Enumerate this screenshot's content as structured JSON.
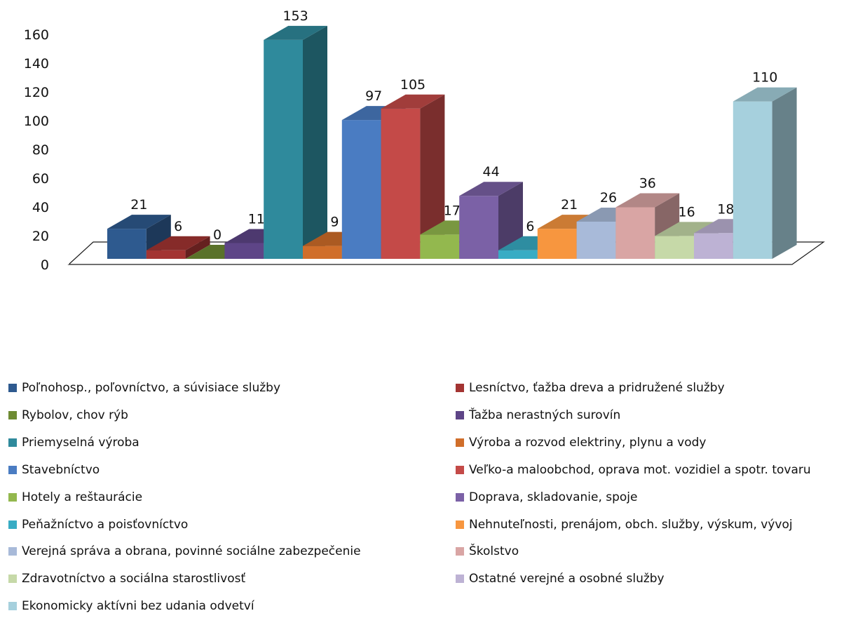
{
  "chart_data": {
    "type": "bar",
    "style": "3d-clustered-column",
    "ylim": [
      0,
      160
    ],
    "yticks": [
      0,
      20,
      40,
      60,
      80,
      100,
      120,
      140,
      160
    ],
    "grid": false,
    "legend_position": "bottom",
    "data_labels": true,
    "series": [
      {
        "name": "Poľnohosp., poľovníctvo, a súvisiace služby",
        "value": 21,
        "color": "#2E5A8F"
      },
      {
        "name": "Lesníctvo, ťažba dreva a pridružené služby",
        "value": 6,
        "color": "#A33432"
      },
      {
        "name": "Rybolov, chov rýb",
        "value": 0,
        "color": "#6E8B33"
      },
      {
        "name": "Ťažba nerastných surovín",
        "value": 11,
        "color": "#5E4587"
      },
      {
        "name": "Priemyselná výroba",
        "value": 153,
        "color": "#2F8A9C"
      },
      {
        "name": "Výroba a rozvod elektriny, plynu a vody",
        "value": 9,
        "color": "#D06E2A"
      },
      {
        "name": "Stavebníctvo",
        "value": 97,
        "color": "#4A7CC2"
      },
      {
        "name": "Veľko-a maloobchod, oprava mot. vozidiel a spotr. tovaru",
        "value": 105,
        "color": "#C44A48"
      },
      {
        "name": "Hotely a reštaurácie",
        "value": 17,
        "color": "#93B84E"
      },
      {
        "name": "Doprava,  skladovanie, spoje",
        "value": 44,
        "color": "#7B61A6"
      },
      {
        "name": "Peňažníctvo a poisťovníctvo",
        "value": 6,
        "color": "#38ACC4"
      },
      {
        "name": "Nehnuteľnosti, prenájom, obch. služby, výskum, vývoj",
        "value": 21,
        "color": "#F7963F"
      },
      {
        "name": "Verejná správa a obrana, povinné sociálne zabezpečenie",
        "value": 26,
        "color": "#A8BAD9"
      },
      {
        "name": "Školstvo",
        "value": 36,
        "color": "#D9A5A4"
      },
      {
        "name": "Zdravotníctvo a sociálna starostlivosť",
        "value": 16,
        "color": "#C6D9A8"
      },
      {
        "name": "Ostatné verejné a osobné služby",
        "value": 18,
        "color": "#BDB2D4"
      },
      {
        "name": "Ekonomicky aktívni bez udania odvetví",
        "value": 110,
        "color": "#A6D0DD"
      }
    ]
  }
}
